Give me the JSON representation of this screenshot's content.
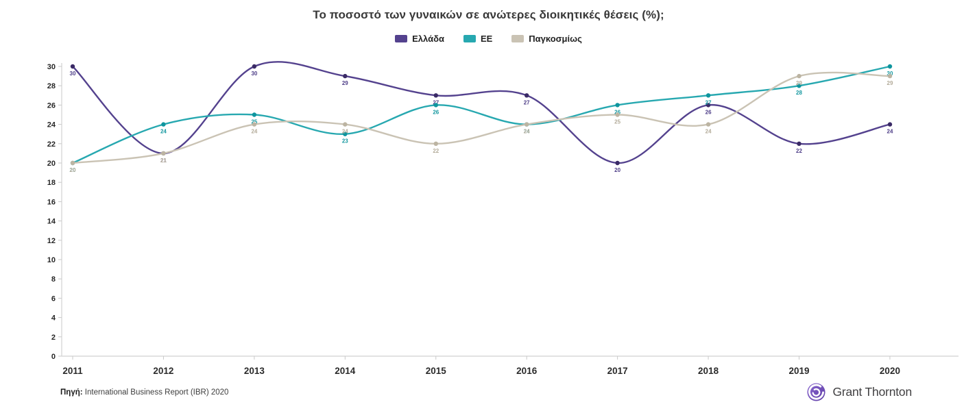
{
  "title": "Το ποσοστό των γυναικών σε ανώτερες διοικητικές θέσεις (%);",
  "chart_data": {
    "type": "line",
    "x": [
      "2011",
      "2012",
      "2013",
      "2014",
      "2015",
      "2016",
      "2017",
      "2018",
      "2019",
      "2020"
    ],
    "series": [
      {
        "id": "ellada",
        "name": "Ελλάδα",
        "color": "#54428e",
        "dot_color": "#3a2a66",
        "label_color": "#4d3d87",
        "values": [
          30,
          21,
          30,
          29,
          27,
          27,
          20,
          26,
          22,
          24
        ]
      },
      {
        "id": "ee",
        "name": "ΕΕ",
        "color": "#27a8b0",
        "dot_color": "#0e959e",
        "label_color": "#13979f",
        "values": [
          20,
          24,
          25,
          23,
          26,
          24,
          26,
          27,
          28,
          30
        ]
      },
      {
        "id": "pagkosmios",
        "name": "Παγκοσμίως",
        "color": "#cac3b4",
        "dot_color": "#bcb4a2",
        "label_color": "#b3ab99",
        "values": [
          20,
          21,
          24,
          24,
          22,
          24,
          25,
          24,
          29,
          29
        ]
      }
    ],
    "ylim": [
      0,
      30
    ],
    "ytick_step": 2,
    "grid": false,
    "legend_position": "top",
    "data_labels": true,
    "xlabel": "",
    "ylabel": ""
  },
  "source": {
    "label": "Πηγή:",
    "text": " International Business Report (IBR) 2020"
  },
  "logo": {
    "text": "Grant Thornton"
  }
}
